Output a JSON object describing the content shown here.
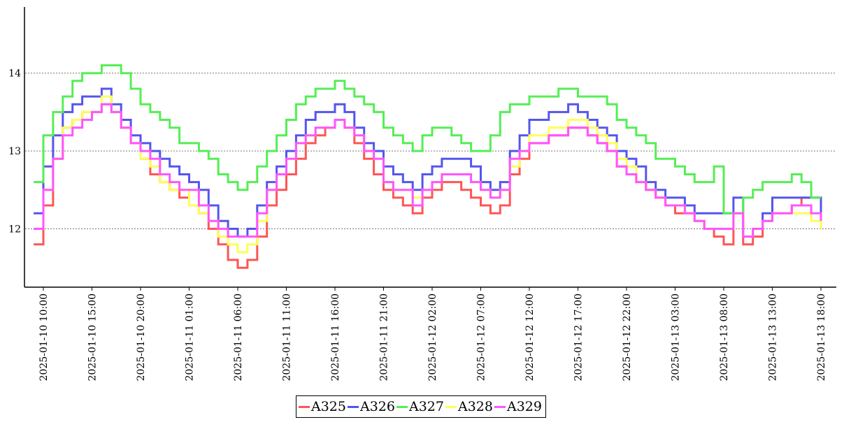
{
  "chart_data": {
    "type": "line",
    "title": "",
    "xlabel": "",
    "ylabel": "",
    "grid": "horizontal dotted",
    "legend_position": "bottom-center",
    "ylim": [
      11.25,
      14.85
    ],
    "xlim": [
      "2025-01-10 08:00",
      "2025-01-13 20:00"
    ],
    "y_ticks": [
      12,
      13,
      14
    ],
    "x_ticks": [
      "2025-01-10 10:00",
      "2025-01-10 15:00",
      "2025-01-10 20:00",
      "2025-01-11 01:00",
      "2025-01-11 06:00",
      "2025-01-11 11:00",
      "2025-01-11 16:00",
      "2025-01-11 21:00",
      "2025-01-12 02:00",
      "2025-01-12 07:00",
      "2025-01-12 12:00",
      "2025-01-12 17:00",
      "2025-01-12 22:00",
      "2025-01-13 03:00",
      "2025-01-13 08:00",
      "2025-01-13 13:00",
      "2025-01-13 18:00"
    ],
    "x_tick_labels": [
      "2025-01-10  10:00",
      "2025-01-10  15:00",
      "2025-01-10  20:00",
      "2025-01-11  01:00",
      "2025-01-11  06:00",
      "2025-01-11  11:00",
      "2025-01-11  16:00",
      "2025-01-11  21:00",
      "2025-01-12  02:00",
      "2025-01-12  07:00",
      "2025-01-12  12:00",
      "2025-01-12  17:00",
      "2025-01-12  22:00",
      "2025-01-13  03:00",
      "2025-01-13  08:00",
      "2025-01-13  13:00",
      "2025-01-13  18:00"
    ],
    "x": [
      "2025-01-10 09:00",
      "2025-01-10 10:00",
      "2025-01-10 11:00",
      "2025-01-10 12:00",
      "2025-01-10 13:00",
      "2025-01-10 14:00",
      "2025-01-10 15:00",
      "2025-01-10 16:00",
      "2025-01-10 17:00",
      "2025-01-10 18:00",
      "2025-01-10 19:00",
      "2025-01-10 20:00",
      "2025-01-10 21:00",
      "2025-01-10 22:00",
      "2025-01-10 23:00",
      "2025-01-11 00:00",
      "2025-01-11 01:00",
      "2025-01-11 02:00",
      "2025-01-11 03:00",
      "2025-01-11 04:00",
      "2025-01-11 05:00",
      "2025-01-11 06:00",
      "2025-01-11 07:00",
      "2025-01-11 08:00",
      "2025-01-11 09:00",
      "2025-01-11 10:00",
      "2025-01-11 11:00",
      "2025-01-11 12:00",
      "2025-01-11 13:00",
      "2025-01-11 14:00",
      "2025-01-11 15:00",
      "2025-01-11 16:00",
      "2025-01-11 17:00",
      "2025-01-11 18:00",
      "2025-01-11 19:00",
      "2025-01-11 20:00",
      "2025-01-11 21:00",
      "2025-01-11 22:00",
      "2025-01-11 23:00",
      "2025-01-12 00:00",
      "2025-01-12 01:00",
      "2025-01-12 02:00",
      "2025-01-12 03:00",
      "2025-01-12 04:00",
      "2025-01-12 05:00",
      "2025-01-12 06:00",
      "2025-01-12 07:00",
      "2025-01-12 08:00",
      "2025-01-12 09:00",
      "2025-01-12 10:00",
      "2025-01-12 11:00",
      "2025-01-12 12:00",
      "2025-01-12 13:00",
      "2025-01-12 14:00",
      "2025-01-12 15:00",
      "2025-01-12 16:00",
      "2025-01-12 17:00",
      "2025-01-12 18:00",
      "2025-01-12 19:00",
      "2025-01-12 20:00",
      "2025-01-12 21:00",
      "2025-01-12 22:00",
      "2025-01-12 23:00",
      "2025-01-13 00:00",
      "2025-01-13 01:00",
      "2025-01-13 02:00",
      "2025-01-13 03:00",
      "2025-01-13 04:00",
      "2025-01-13 05:00",
      "2025-01-13 06:00",
      "2025-01-13 07:00",
      "2025-01-13 08:00",
      "2025-01-13 09:00",
      "2025-01-13 10:00",
      "2025-01-13 11:00",
      "2025-01-13 12:00",
      "2025-01-13 13:00",
      "2025-01-13 14:00",
      "2025-01-13 15:00",
      "2025-01-13 16:00",
      "2025-01-13 17:00",
      "2025-01-13 18:00"
    ],
    "series": [
      {
        "name": "A325",
        "color": "#ff5555",
        "values": [
          11.8,
          12.3,
          12.9,
          13.3,
          13.4,
          13.5,
          13.5,
          13.6,
          13.5,
          13.3,
          13.1,
          12.9,
          12.7,
          12.6,
          12.5,
          12.4,
          12.3,
          12.2,
          12.0,
          11.8,
          11.6,
          11.5,
          11.6,
          11.9,
          12.3,
          12.5,
          12.7,
          12.9,
          13.1,
          13.2,
          13.3,
          13.4,
          13.3,
          13.1,
          12.9,
          12.7,
          12.5,
          12.4,
          12.3,
          12.2,
          12.4,
          12.5,
          12.6,
          12.6,
          12.5,
          12.4,
          12.3,
          12.2,
          12.3,
          12.7,
          12.9,
          13.1,
          13.1,
          13.2,
          13.2,
          13.3,
          13.3,
          13.2,
          13.1,
          13.0,
          12.8,
          12.7,
          12.6,
          12.5,
          12.4,
          12.3,
          12.2,
          12.2,
          12.1,
          12.0,
          11.9,
          11.8,
          12.2,
          11.8,
          11.9,
          12.1,
          12.2,
          12.2,
          12.3,
          12.4,
          12.4,
          12.2
        ]
      },
      {
        "name": "A326",
        "color": "#5555ee",
        "values": [
          12.2,
          12.8,
          13.2,
          13.5,
          13.6,
          13.7,
          13.7,
          13.8,
          13.6,
          13.4,
          13.2,
          13.1,
          13.0,
          12.9,
          12.8,
          12.7,
          12.6,
          12.5,
          12.3,
          12.1,
          12.0,
          11.9,
          12.0,
          12.3,
          12.6,
          12.8,
          13.0,
          13.2,
          13.4,
          13.5,
          13.5,
          13.6,
          13.5,
          13.3,
          13.1,
          13.0,
          12.8,
          12.7,
          12.6,
          12.5,
          12.7,
          12.8,
          12.9,
          12.9,
          12.9,
          12.8,
          12.6,
          12.5,
          12.6,
          13.0,
          13.2,
          13.4,
          13.4,
          13.5,
          13.5,
          13.6,
          13.5,
          13.4,
          13.3,
          13.2,
          13.0,
          12.9,
          12.8,
          12.6,
          12.5,
          12.4,
          12.4,
          12.3,
          12.2,
          12.2,
          12.2,
          12.2,
          12.4,
          11.9,
          12.0,
          12.2,
          12.4,
          12.4,
          12.4,
          12.4,
          12.4,
          12.2
        ]
      },
      {
        "name": "A327",
        "color": "#55ee55",
        "values": [
          12.6,
          13.2,
          13.5,
          13.7,
          13.9,
          14.0,
          14.0,
          14.1,
          14.1,
          14.0,
          13.8,
          13.6,
          13.5,
          13.4,
          13.3,
          13.1,
          13.1,
          13.0,
          12.9,
          12.7,
          12.6,
          12.5,
          12.6,
          12.8,
          13.0,
          13.2,
          13.4,
          13.6,
          13.7,
          13.8,
          13.8,
          13.9,
          13.8,
          13.7,
          13.6,
          13.5,
          13.3,
          13.2,
          13.1,
          13.0,
          13.2,
          13.3,
          13.3,
          13.2,
          13.1,
          13.0,
          13.0,
          13.2,
          13.5,
          13.6,
          13.6,
          13.7,
          13.7,
          13.7,
          13.8,
          13.8,
          13.7,
          13.7,
          13.7,
          13.6,
          13.4,
          13.3,
          13.2,
          13.1,
          12.9,
          12.9,
          12.8,
          12.7,
          12.6,
          12.6,
          12.8,
          12.2,
          12.2,
          12.4,
          12.5,
          12.6,
          12.6,
          12.6,
          12.7,
          12.6,
          12.4,
          12.4
        ]
      },
      {
        "name": "A328",
        "color": "#ffff55",
        "values": [
          12.0,
          12.5,
          12.9,
          13.3,
          13.4,
          13.5,
          13.5,
          13.7,
          13.5,
          13.3,
          13.1,
          12.9,
          12.8,
          12.6,
          12.5,
          12.5,
          12.3,
          12.2,
          12.1,
          11.9,
          11.8,
          11.7,
          11.8,
          12.1,
          12.5,
          12.7,
          12.9,
          13.1,
          13.2,
          13.3,
          13.3,
          13.4,
          13.3,
          13.2,
          13.0,
          12.9,
          12.6,
          12.5,
          12.5,
          12.4,
          12.5,
          12.6,
          12.7,
          12.7,
          12.7,
          12.6,
          12.5,
          12.4,
          12.5,
          12.8,
          13.0,
          13.2,
          13.2,
          13.3,
          13.3,
          13.4,
          13.4,
          13.3,
          13.2,
          13.1,
          12.9,
          12.8,
          12.6,
          12.5,
          12.4,
          12.3,
          12.3,
          12.2,
          12.1,
          12.0,
          12.0,
          12.0,
          12.2,
          11.9,
          12.0,
          12.1,
          12.2,
          12.2,
          12.2,
          12.2,
          12.1,
          12.0
        ]
      },
      {
        "name": "A329",
        "color": "#ff55ff",
        "values": [
          12.0,
          12.5,
          12.9,
          13.2,
          13.3,
          13.4,
          13.5,
          13.6,
          13.5,
          13.3,
          13.1,
          13.0,
          12.9,
          12.7,
          12.6,
          12.5,
          12.5,
          12.3,
          12.1,
          12.0,
          11.9,
          11.9,
          11.9,
          12.2,
          12.5,
          12.7,
          12.9,
          13.1,
          13.2,
          13.3,
          13.3,
          13.4,
          13.3,
          13.2,
          13.0,
          12.9,
          12.6,
          12.5,
          12.5,
          12.3,
          12.5,
          12.6,
          12.7,
          12.7,
          12.7,
          12.6,
          12.5,
          12.4,
          12.5,
          12.9,
          13.0,
          13.1,
          13.1,
          13.2,
          13.2,
          13.3,
          13.3,
          13.2,
          13.1,
          13.0,
          12.8,
          12.7,
          12.6,
          12.5,
          12.4,
          12.3,
          12.3,
          12.2,
          12.1,
          12.0,
          12.0,
          12.0,
          12.2,
          11.9,
          12.0,
          12.1,
          12.2,
          12.2,
          12.3,
          12.3,
          12.2,
          12.1
        ]
      }
    ]
  }
}
